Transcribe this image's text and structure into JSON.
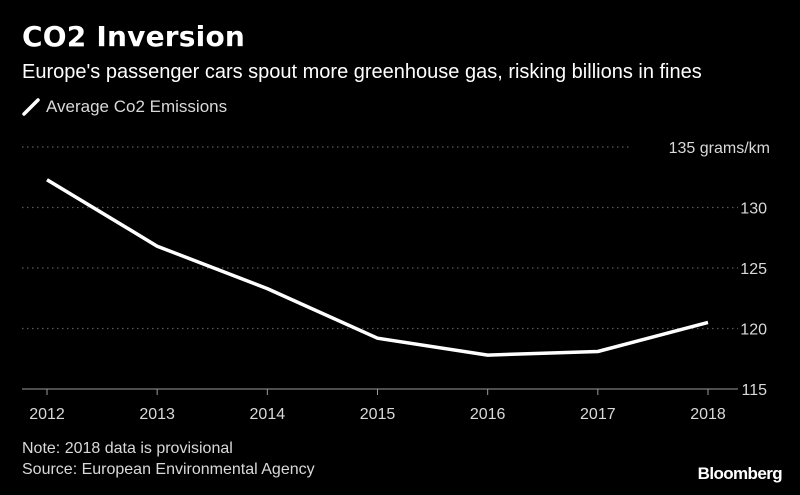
{
  "header": {
    "title": "CO2 Inversion",
    "subtitle": "Europe's passenger cars spout more greenhouse gas, risking billions in fines"
  },
  "legend": {
    "label": "Average Co2 Emissions",
    "icon": "diagonal-line-icon"
  },
  "colors": {
    "background": "#000000",
    "line": "#ffffff",
    "grid": "#5a5a5a",
    "text": "#d9d9d9"
  },
  "chart_data": {
    "type": "line",
    "title": "CO2 Inversion",
    "subtitle": "Europe's passenger cars spout more greenhouse gas, risking billions in fines",
    "x": [
      2012,
      2013,
      2014,
      2015,
      2016,
      2017,
      2018
    ],
    "series": [
      {
        "name": "Average Co2 Emissions",
        "values": [
          132.3,
          126.8,
          123.3,
          119.2,
          117.8,
          118.1,
          120.5
        ]
      }
    ],
    "xlabel": "",
    "ylabel": "",
    "ylim": [
      115,
      135
    ],
    "yticks": [
      115,
      120,
      125,
      130,
      135
    ],
    "ytick_labels": [
      "115",
      "120",
      "125",
      "130",
      "135 grams/km"
    ],
    "xtick_labels": [
      "2012",
      "2013",
      "2014",
      "2015",
      "2016",
      "2017",
      "2018"
    ],
    "grid": true,
    "grid_style": "dotted",
    "y_axis_side": "right",
    "legend_position": "top-left"
  },
  "footer": {
    "note": "Note: 2018 data is provisional",
    "source": "Source: European Environmental Agency",
    "brand": "Bloomberg"
  }
}
